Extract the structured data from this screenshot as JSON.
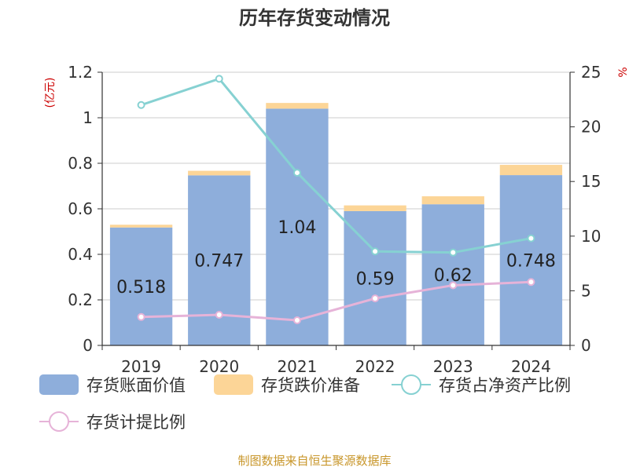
{
  "chart_data": {
    "type": "bar",
    "title": "历年存货变动情况",
    "categories": [
      "2019",
      "2020",
      "2021",
      "2022",
      "2023",
      "2024"
    ],
    "y_left": {
      "unit": "(亿元)",
      "ylim": [
        0,
        1.2
      ],
      "ticks": [
        "0",
        "0.2",
        "0.4",
        "0.6",
        "0.8",
        "1",
        "1.2"
      ]
    },
    "y_right": {
      "unit": "%",
      "ylim": [
        0,
        25
      ],
      "ticks": [
        "0",
        "5",
        "10",
        "15",
        "20",
        "25"
      ]
    },
    "series": [
      {
        "name": "存货账面价值",
        "type": "bar",
        "stack": "inv",
        "axis": "left",
        "color": "#8eaedb",
        "values": [
          0.518,
          0.747,
          1.04,
          0.59,
          0.62,
          0.748
        ],
        "labels": [
          "0.518",
          "0.747",
          "1.04",
          "0.59",
          "0.62",
          "0.748"
        ]
      },
      {
        "name": "存货跌价准备",
        "type": "bar",
        "stack": "inv",
        "axis": "left",
        "color": "#fcd597",
        "values": [
          0.012,
          0.02,
          0.025,
          0.025,
          0.035,
          0.045
        ]
      },
      {
        "name": "存货占净资产比例",
        "type": "line",
        "axis": "right",
        "color": "#86d1d2",
        "values": [
          22.0,
          24.4,
          15.8,
          8.6,
          8.5,
          9.8
        ]
      },
      {
        "name": "存货计提比例",
        "type": "line",
        "axis": "right",
        "color": "#e6b3d8",
        "values": [
          2.6,
          2.8,
          2.3,
          4.3,
          5.5,
          5.8
        ]
      }
    ],
    "legend_position": "bottom",
    "grid": true
  },
  "footer": {
    "source": "制图数据来自恒生聚源数据库"
  }
}
